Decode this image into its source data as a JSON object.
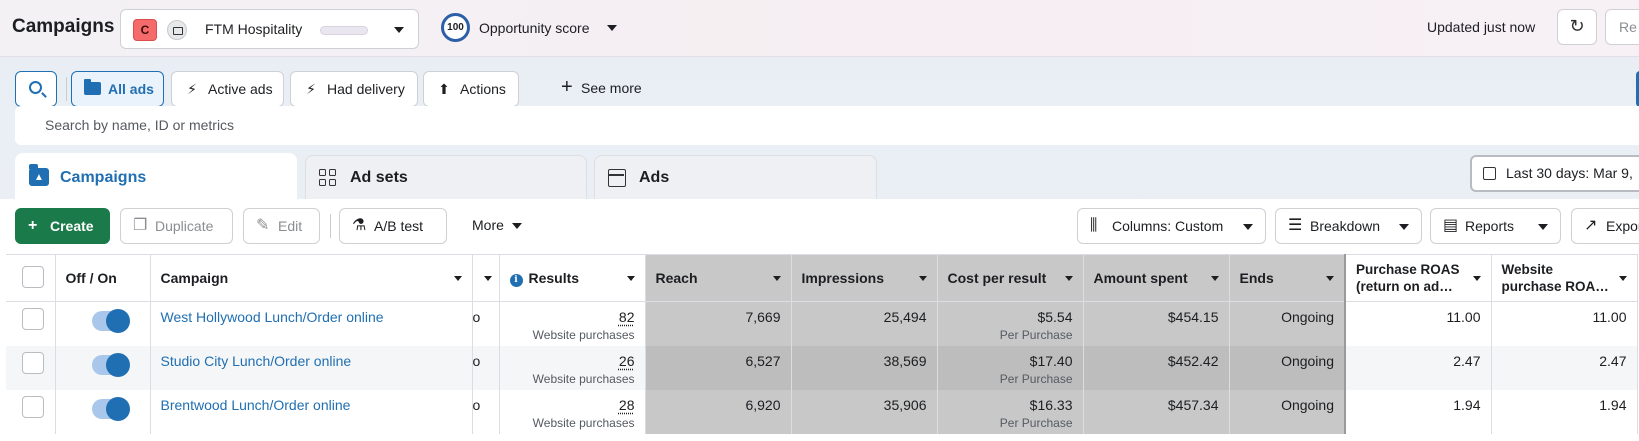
{
  "header": {
    "title": "Campaigns",
    "account": {
      "badge": "C",
      "name": "FTM Hospitality"
    },
    "opportunity": {
      "score": "100",
      "label": "Opportunity score"
    },
    "updated": "Updated just now",
    "cut_button": "Re"
  },
  "filters": {
    "buttons": [
      {
        "label": "All ads",
        "icon": "folder-icon",
        "active": true
      },
      {
        "label": "Active ads",
        "icon": "lightning-icon"
      },
      {
        "label": "Had delivery",
        "icon": "lightning-icon"
      },
      {
        "label": "Actions",
        "icon": "upload-icon"
      }
    ],
    "see_more": "See more",
    "search_placeholder": "Search by name, ID or metrics"
  },
  "tabs": [
    {
      "label": "Campaigns",
      "icon": "campaign-folder-icon",
      "active": true
    },
    {
      "label": "Ad sets",
      "icon": "grid-icon"
    },
    {
      "label": "Ads",
      "icon": "ad-window-icon"
    }
  ],
  "date_range": "Last 30 days: Mar 9,",
  "toolbar": {
    "create": "Create",
    "duplicate": "Duplicate",
    "edit": "Edit",
    "ab_test": "A/B test",
    "more": "More",
    "columns": "Columns: Custom",
    "breakdown": "Breakdown",
    "reports": "Reports",
    "export": "Expor"
  },
  "table": {
    "headers": {
      "toggle": "Off / On",
      "campaign": "Campaign",
      "results": "Results",
      "reach": "Reach",
      "impressions": "Impressions",
      "cost_per_result": "Cost per result",
      "amount_spent": "Amount spent",
      "ends": "Ends",
      "purchase_roas": "Purchase ROAS (return on ad…",
      "website_purchase_roas": "Website purchase ROA…"
    },
    "rows": [
      {
        "campaign": "West Hollywood Lunch/Order online",
        "hidden_col": "o",
        "results": "82",
        "results_sub": "Website purchases",
        "reach": "7,669",
        "impressions": "25,494",
        "cost": "$5.54",
        "cost_sub": "Per Purchase",
        "spent": "$454.15",
        "ends": "Ongoing",
        "roas": "11.00",
        "web_roas": "11.00"
      },
      {
        "campaign": "Studio City Lunch/Order online",
        "hidden_col": "o",
        "results": "26",
        "results_sub": "Website purchases",
        "reach": "6,527",
        "impressions": "38,569",
        "cost": "$17.40",
        "cost_sub": "Per Purchase",
        "spent": "$452.42",
        "ends": "Ongoing",
        "roas": "2.47",
        "web_roas": "2.47"
      },
      {
        "campaign": "Brentwood Lunch/Order online",
        "hidden_col": "o",
        "results": "28",
        "results_sub": "Website purchases",
        "reach": "6,920",
        "impressions": "35,906",
        "cost": "$16.33",
        "cost_sub": "Per Purchase",
        "spent": "$457.34",
        "ends": "Ongoing",
        "roas": "1.94",
        "web_roas": "1.94"
      }
    ]
  },
  "colors": {
    "accent": "#1f6fb2",
    "create": "#1b7a4a",
    "badge": "#f56b6b"
  }
}
